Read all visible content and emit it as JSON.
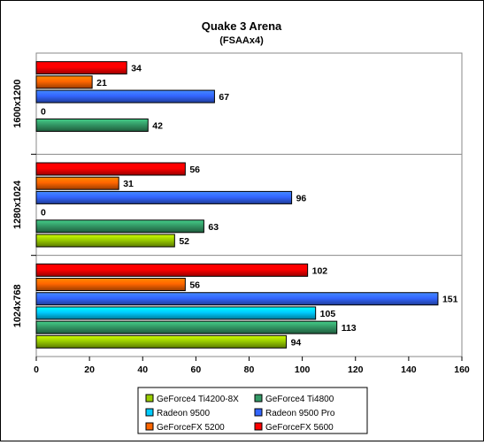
{
  "chart_data": {
    "type": "bar",
    "orientation": "horizontal",
    "title": "Quake 3 Arena",
    "subtitle": "(FSAAx4)",
    "xlabel": "",
    "ylabel": "",
    "xlim": [
      0,
      160
    ],
    "x_ticks": [
      0,
      20,
      40,
      60,
      80,
      100,
      120,
      140,
      160
    ],
    "x_tick_labels": [
      "0",
      "20",
      "40",
      "60",
      "80",
      "100",
      "120",
      "140",
      "160"
    ],
    "grid": "vertical lines off; horizontal separators between groups",
    "legend_position": "bottom-center",
    "categories": [
      "1600x1200",
      "1280x1024",
      "1024x768"
    ],
    "series": [
      {
        "name": "GeForce4 Ti4200-8X",
        "color": "#99cc00",
        "values": [
          null,
          52,
          94
        ],
        "labels": [
          "",
          "52",
          "94"
        ]
      },
      {
        "name": "GeForce4 Ti4800",
        "color": "#339966",
        "values": [
          42,
          63,
          113
        ],
        "labels": [
          "42",
          "63",
          "113"
        ]
      },
      {
        "name": "Radeon 9500",
        "color": "#00ccff",
        "values": [
          0,
          0,
          105
        ],
        "labels": [
          "0",
          "0",
          "105"
        ]
      },
      {
        "name": "Radeon 9500 Pro",
        "color": "#3366ff",
        "values": [
          67,
          96,
          151
        ],
        "labels": [
          "67",
          "96",
          "151"
        ]
      },
      {
        "name": "GeForceFX 5200",
        "color": "#ff6600",
        "values": [
          21,
          31,
          56
        ],
        "labels": [
          "21",
          "31",
          "56"
        ]
      },
      {
        "name": "GeForceFX 5600",
        "color": "#ff0000",
        "values": [
          34,
          56,
          102
        ],
        "labels": [
          "34",
          "56",
          "102"
        ]
      }
    ]
  }
}
